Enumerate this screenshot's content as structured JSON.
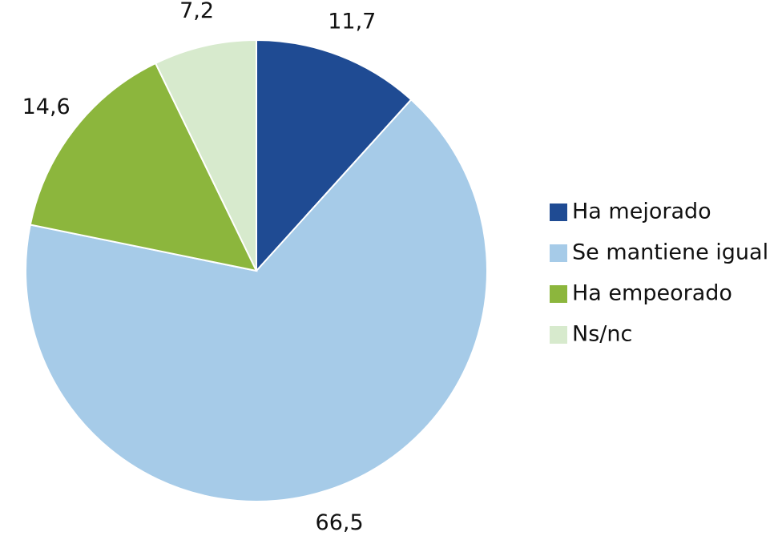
{
  "chart_data": {
    "type": "pie",
    "categories": [
      "Ha mejorado",
      "Se mantiene igual",
      "Ha empeorado",
      "Ns/nc"
    ],
    "values": [
      11.7,
      66.5,
      14.6,
      7.2
    ],
    "value_labels": [
      "11,7",
      "66,5",
      "14,6",
      "7,2"
    ],
    "colors": [
      "#1f4b93",
      "#a6cbe8",
      "#8cb63d",
      "#d7eacd"
    ],
    "legend": "right"
  }
}
